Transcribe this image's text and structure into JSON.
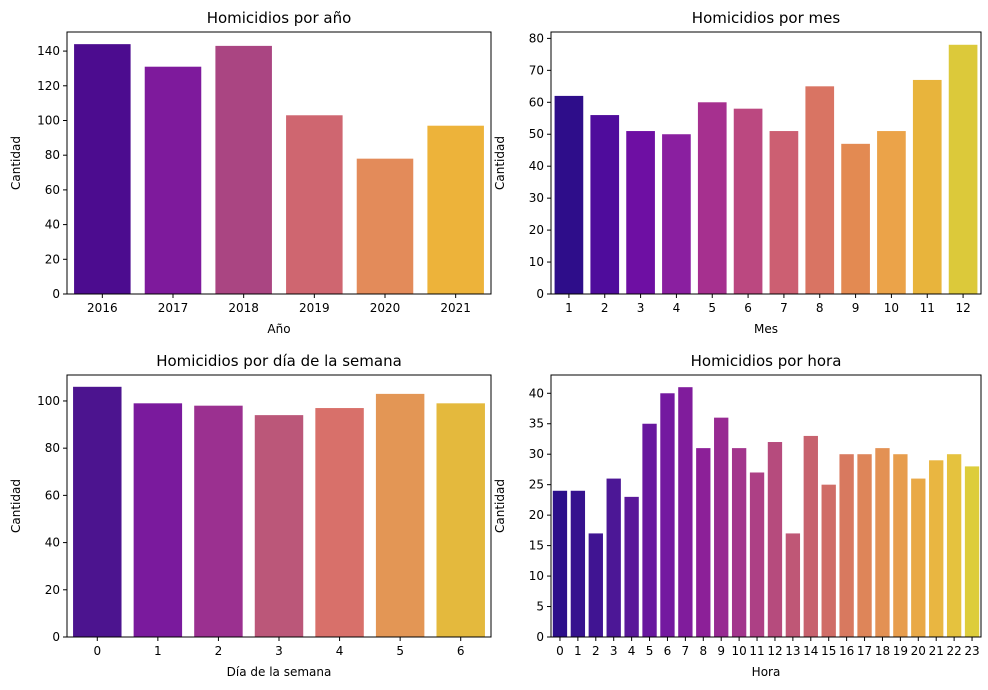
{
  "chart_data": [
    {
      "type": "bar",
      "title": "Homicidios por año",
      "xlabel": "Año",
      "ylabel": "Cantidad",
      "categories": [
        "2016",
        "2017",
        "2018",
        "2019",
        "2020",
        "2021"
      ],
      "values": [
        144,
        131,
        143,
        103,
        78,
        97
      ],
      "ylim": [
        0,
        151
      ],
      "yticks": [
        0,
        20,
        40,
        60,
        80,
        100,
        120,
        140
      ],
      "colors": [
        "#4c0c8f",
        "#7e1a9c",
        "#aa4582",
        "#cf6670",
        "#e38b5a",
        "#edb33a"
      ]
    },
    {
      "type": "bar",
      "title": "Homicidios por mes",
      "xlabel": "Mes",
      "ylabel": "Cantidad",
      "categories": [
        "1",
        "2",
        "3",
        "4",
        "5",
        "6",
        "7",
        "8",
        "9",
        "10",
        "11",
        "12"
      ],
      "values": [
        62,
        56,
        51,
        50,
        60,
        58,
        51,
        65,
        47,
        51,
        67,
        78
      ],
      "ylim": [
        0,
        82
      ],
      "yticks": [
        0,
        10,
        20,
        30,
        40,
        50,
        60,
        70,
        80
      ],
      "colors": [
        "#2e0d8a",
        "#4f0c9c",
        "#6e0fa3",
        "#8a1fa0",
        "#a6308f",
        "#bb4880",
        "#cc5f72",
        "#d97463",
        "#e38a52",
        "#eba349",
        "#e8b43c",
        "#dcc93a"
      ]
    },
    {
      "type": "bar",
      "title": "Homicidios por día de la semana",
      "xlabel": "Día de la semana",
      "ylabel": "Cantidad",
      "categories": [
        "0",
        "1",
        "2",
        "3",
        "4",
        "5",
        "6"
      ],
      "values": [
        106,
        99,
        98,
        94,
        97,
        103,
        99
      ],
      "ylim": [
        0,
        111
      ],
      "yticks": [
        0,
        20,
        40,
        60,
        80,
        100
      ],
      "colors": [
        "#4c148f",
        "#7a1a9d",
        "#9b3090",
        "#bb5779",
        "#d8706a",
        "#e39655",
        "#e4b93d"
      ]
    },
    {
      "type": "bar",
      "title": "Homicidios por hora",
      "xlabel": "Hora",
      "ylabel": "Cantidad",
      "categories": [
        "0",
        "1",
        "2",
        "3",
        "4",
        "5",
        "6",
        "7",
        "8",
        "9",
        "10",
        "11",
        "12",
        "13",
        "14",
        "15",
        "16",
        "17",
        "18",
        "19",
        "20",
        "21",
        "22",
        "23"
      ],
      "values": [
        24,
        24,
        17,
        26,
        23,
        35,
        40,
        41,
        31,
        36,
        31,
        27,
        32,
        17,
        33,
        25,
        30,
        30,
        31,
        30,
        26,
        29,
        30,
        28
      ],
      "ylim": [
        0,
        43
      ],
      "yticks": [
        0,
        5,
        10,
        15,
        20,
        25,
        30,
        35,
        40
      ],
      "colors": [
        "#2c0f8a",
        "#36128e",
        "#401492",
        "#4c1796",
        "#5a1899",
        "#68179e",
        "#7419a0",
        "#801c9c",
        "#8c2098",
        "#972a92",
        "#a2358c",
        "#ad4085",
        "#b64b7d",
        "#bf5776",
        "#c7626e",
        "#d06d67",
        "#d8795f",
        "#de8559",
        "#e39154",
        "#e79d4d",
        "#e9a947",
        "#e9b641",
        "#e5c23e",
        "#ddcd3b"
      ]
    }
  ]
}
